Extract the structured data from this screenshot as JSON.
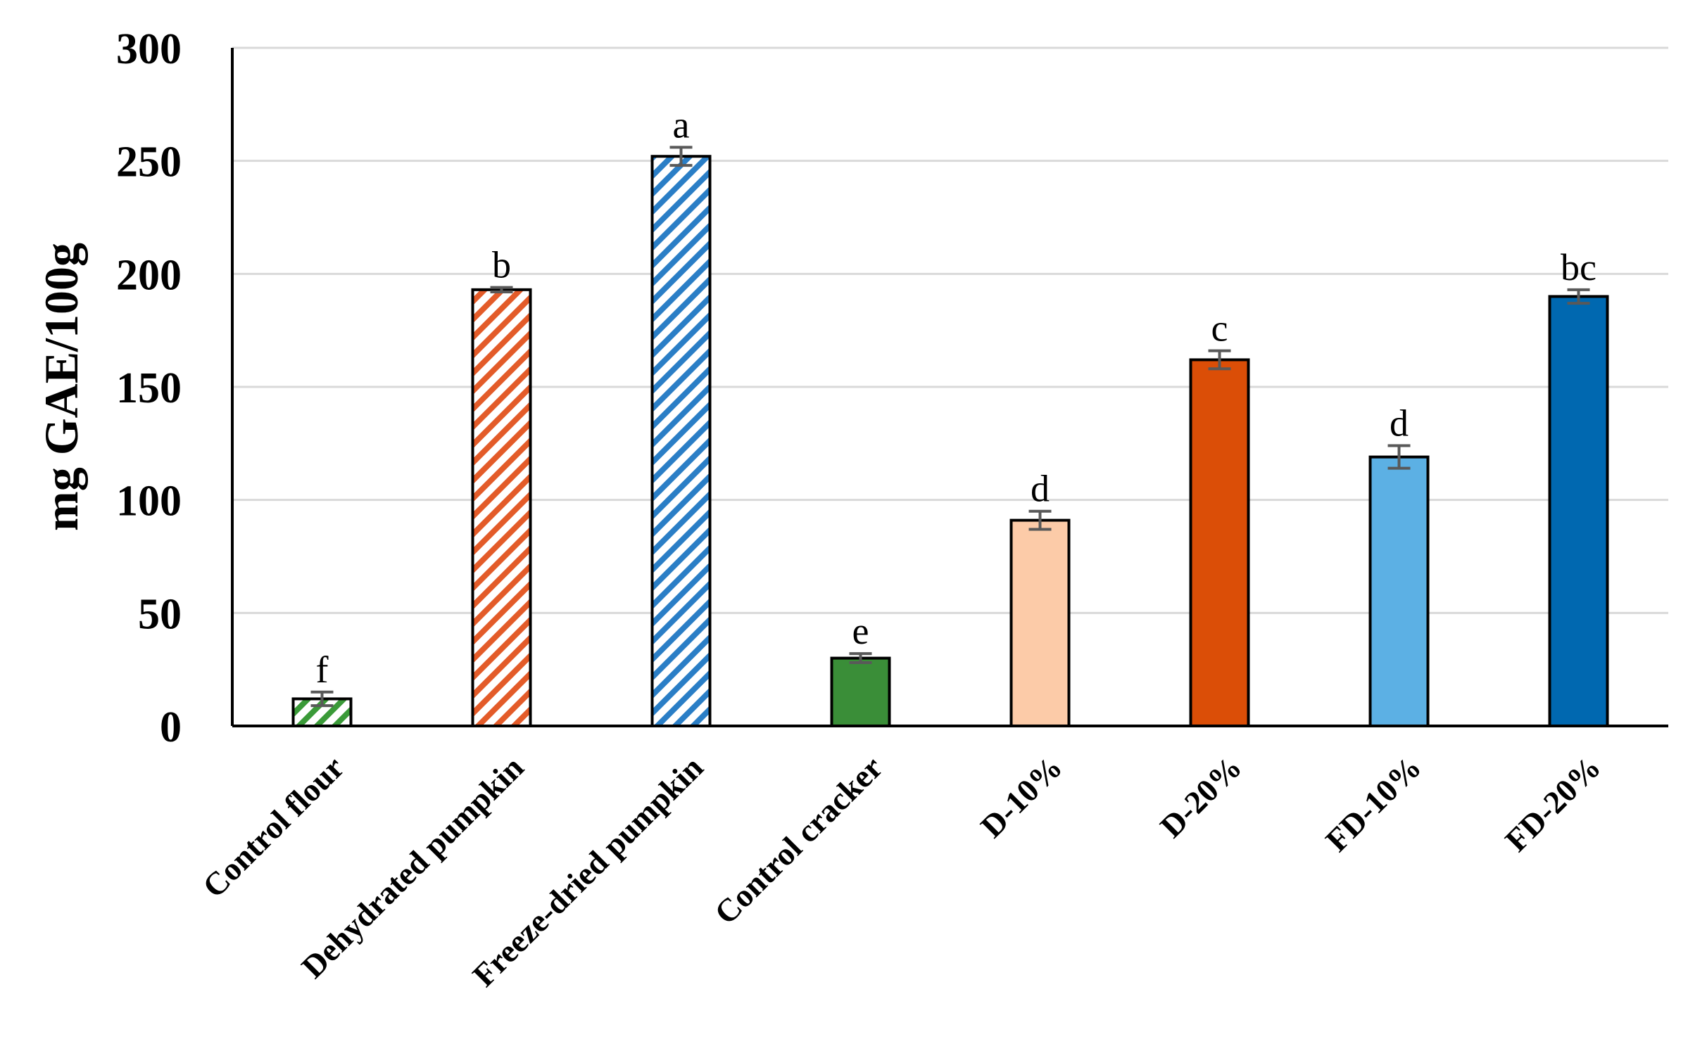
{
  "chart_data": {
    "type": "bar",
    "title": "",
    "xlabel": "",
    "ylabel": "mg GAE/100g",
    "ylim": [
      0,
      300
    ],
    "yticks": [
      0,
      50,
      100,
      150,
      200,
      250,
      300
    ],
    "grid": true,
    "categories": [
      "Control flour",
      "Dehydrated pumpkin",
      "Freeze-dried pumpkin",
      "Control cracker",
      "D-10%",
      "D-20%",
      "FD-10%",
      "FD-20%"
    ],
    "values": [
      12,
      193,
      252,
      30,
      91,
      162,
      119,
      190
    ],
    "errors": [
      3,
      1,
      4,
      2,
      4,
      4,
      5,
      3
    ],
    "significance_labels": [
      "f",
      "b",
      "a",
      "e",
      "d",
      "c",
      "d",
      "bc"
    ],
    "colors": [
      "#3A9A38",
      "#E35B29",
      "#2A7EC6",
      "#3A8E38",
      "#FCCBA8",
      "#DB4E07",
      "#5CB0E4",
      "#0068B0"
    ],
    "patterns": [
      "hatch",
      "hatch",
      "hatch",
      "solid",
      "solid",
      "solid",
      "solid",
      "solid"
    ]
  }
}
